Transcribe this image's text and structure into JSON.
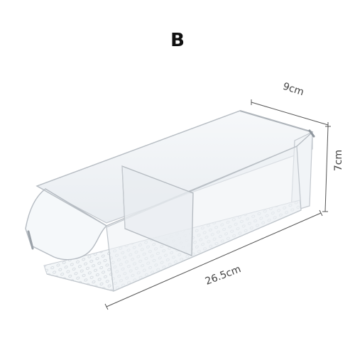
{
  "panel_label": "B",
  "dimensions": {
    "width": "9cm",
    "height": "7cm",
    "length": "26.5cm"
  },
  "colors": {
    "bin_outline": "#b9bec4",
    "bin_fill": "#eef2f5",
    "measure_line": "#555555"
  }
}
